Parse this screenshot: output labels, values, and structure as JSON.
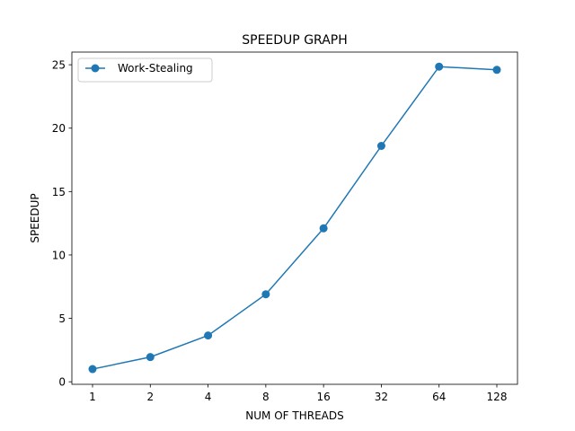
{
  "chart_data": {
    "type": "line",
    "title": "SPEEDUP GRAPH",
    "xlabel": "NUM OF THREADS",
    "ylabel": "SPEEDUP",
    "categories": [
      "1",
      "2",
      "4",
      "8",
      "16",
      "32",
      "64",
      "128"
    ],
    "series": [
      {
        "name": "Work-Stealing",
        "values": [
          1.0,
          1.95,
          3.65,
          6.9,
          12.1,
          18.6,
          24.85,
          24.6
        ],
        "color": "#1f77b4",
        "marker": "circle"
      }
    ],
    "yticks": [
      0,
      5,
      10,
      15,
      20,
      25
    ],
    "ylim": [
      -0.2,
      26.0
    ],
    "grid": false,
    "legend_position": "top-left"
  }
}
